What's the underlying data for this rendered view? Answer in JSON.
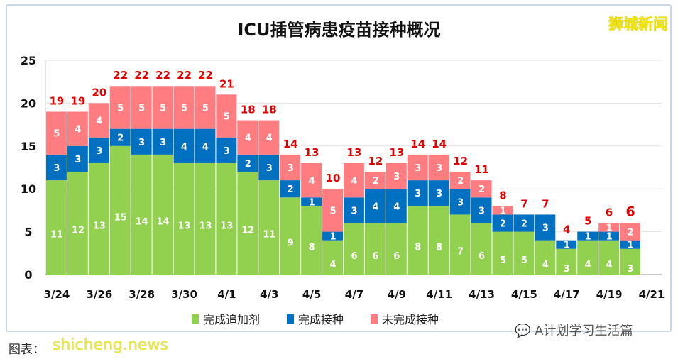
{
  "header": {
    "title": "ICU插管病患疫苗接种概况",
    "logo": "狮城新闻"
  },
  "footer": {
    "source": "图表：",
    "site_watermark": "shicheng.news",
    "wechat_watermark": "A计划学习生活篇"
  },
  "chart_data": {
    "type": "bar",
    "stacked": true,
    "title": "ICU插管病患疫苗接种概况",
    "categories": [
      "3/24",
      "3/25",
      "3/26",
      "3/27",
      "3/28",
      "3/29",
      "3/30",
      "3/31",
      "4/1",
      "4/2",
      "4/3",
      "4/4",
      "4/5",
      "4/6",
      "4/7",
      "4/8",
      "4/9",
      "4/10",
      "4/11",
      "4/12",
      "4/13",
      "4/14",
      "4/15",
      "4/16",
      "4/17",
      "4/18",
      "4/19",
      "4/20"
    ],
    "x_tick_labels": [
      "3/24",
      "3/26",
      "3/28",
      "3/30",
      "4/1",
      "4/3",
      "4/5",
      "4/7",
      "4/9",
      "4/11",
      "4/13",
      "4/15",
      "4/17",
      "4/19",
      "4/21"
    ],
    "series": [
      {
        "name": "完成追加剂",
        "color": "#92d050",
        "values": [
          11,
          12,
          13,
          15,
          14,
          14,
          13,
          13,
          13,
          12,
          11,
          9,
          8,
          4,
          6,
          6,
          6,
          8,
          8,
          7,
          6,
          5,
          5,
          4,
          3,
          4,
          4,
          3
        ]
      },
      {
        "name": "完成接种",
        "color": "#0070c0",
        "values": [
          3,
          3,
          3,
          2,
          3,
          3,
          4,
          4,
          3,
          2,
          3,
          2,
          1,
          1,
          3,
          4,
          4,
          3,
          3,
          3,
          3,
          2,
          2,
          3,
          1,
          1,
          1,
          1
        ]
      },
      {
        "name": "未完成接种",
        "color": "#ff7c80",
        "values": [
          5,
          4,
          4,
          5,
          5,
          5,
          5,
          5,
          5,
          4,
          4,
          3,
          4,
          5,
          4,
          2,
          3,
          3,
          3,
          2,
          2,
          1,
          0,
          0,
          0,
          0,
          1,
          2
        ]
      }
    ],
    "totals": [
      19,
      19,
      20,
      22,
      22,
      22,
      22,
      22,
      21,
      18,
      18,
      14,
      13,
      10,
      13,
      12,
      13,
      14,
      14,
      12,
      11,
      8,
      7,
      7,
      4,
      5,
      6,
      6
    ],
    "ylim": [
      0,
      25
    ],
    "yticks": [
      0,
      5,
      10,
      15,
      20,
      25
    ],
    "grid": true,
    "legend": "bottom",
    "total_label_color": "#e00000"
  }
}
